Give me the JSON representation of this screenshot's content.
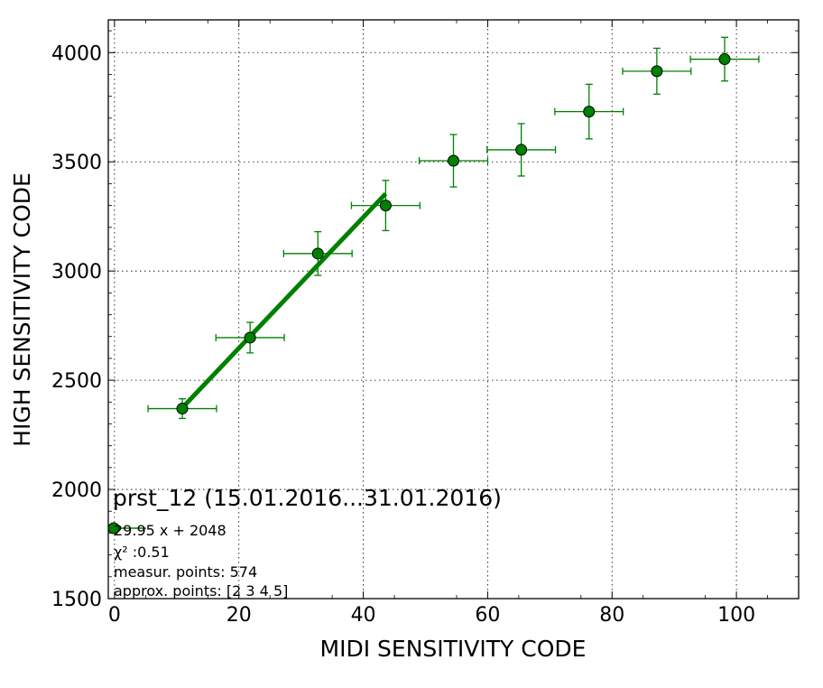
{
  "chart_data": {
    "type": "scatter",
    "title": "",
    "xlabel": "MIDI SENSITIVITY CODE",
    "ylabel": "HIGH SENSITIVITY CODE",
    "xlim": [
      -1,
      110
    ],
    "ylim": [
      1500,
      4150
    ],
    "xticks": [
      0,
      20,
      40,
      60,
      80,
      100
    ],
    "yticks": [
      1500,
      2000,
      2500,
      3000,
      3500,
      4000
    ],
    "x_tick_labels": [
      "0",
      "20",
      "40",
      "60",
      "80",
      "100"
    ],
    "y_tick_labels": [
      "1500",
      "2000",
      "2500",
      "3000",
      "3500",
      "4000"
    ],
    "grid": true,
    "color": "#008000",
    "marker_color": "#008000",
    "series": [
      {
        "x": [
          10.9,
          21.8,
          32.7,
          43.6,
          54.5,
          65.4,
          76.3,
          87.2,
          98.1
        ],
        "y": [
          2370,
          2695,
          3080,
          3300,
          3505,
          3555,
          3730,
          3915,
          3970
        ],
        "x_err": [
          5.5,
          5.5,
          5.5,
          5.5,
          5.5,
          5.5,
          5.5,
          5.5,
          5.5
        ],
        "y_err": [
          45,
          70,
          100,
          115,
          120,
          120,
          125,
          105,
          100
        ]
      }
    ],
    "fit_line": {
      "x": [
        10.9,
        43.6
      ],
      "y": [
        2374,
        3354
      ]
    },
    "annotation": {
      "title": "prst_12 (15.01.2016...31.01.2016)",
      "fit_text": "29.95 x + 2048",
      "chi_text": "χ² :0.51",
      "measur_text": "measur. points: 574",
      "approx_text": "approx. points: [2 3 4 5]"
    }
  }
}
